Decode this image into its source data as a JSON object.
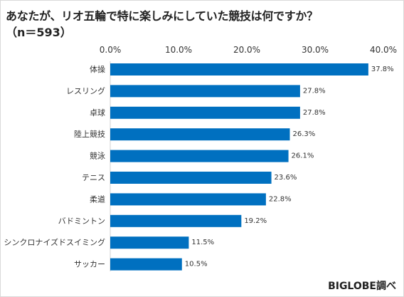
{
  "chart_data": {
    "type": "bar",
    "orientation": "horizontal",
    "title": "あなたが、リオ五輪で特に楽しみにしていた競技は何ですか？",
    "subtitle": "（n＝593）",
    "xlim": [
      0,
      40
    ],
    "x_ticks": [
      "0.0%",
      "10.0%",
      "20.0%",
      "30.0%",
      "40.0%"
    ],
    "categories": [
      "体操",
      "レスリング",
      "卓球",
      "陸上競技",
      "競泳",
      "テニス",
      "柔道",
      "バドミントン",
      "シンクロナイズドスイミング",
      "サッカー"
    ],
    "values": [
      37.8,
      27.8,
      27.8,
      26.3,
      26.1,
      23.6,
      22.8,
      19.2,
      11.5,
      10.5
    ],
    "data_labels": [
      "37.8%",
      "27.8%",
      "27.8%",
      "26.3%",
      "26.1%",
      "23.6%",
      "22.8%",
      "19.2%",
      "11.5%",
      "10.5%"
    ],
    "bar_color": "#0070c0",
    "grid": false,
    "legend": "none"
  },
  "credit": "BIGLOBE調べ"
}
